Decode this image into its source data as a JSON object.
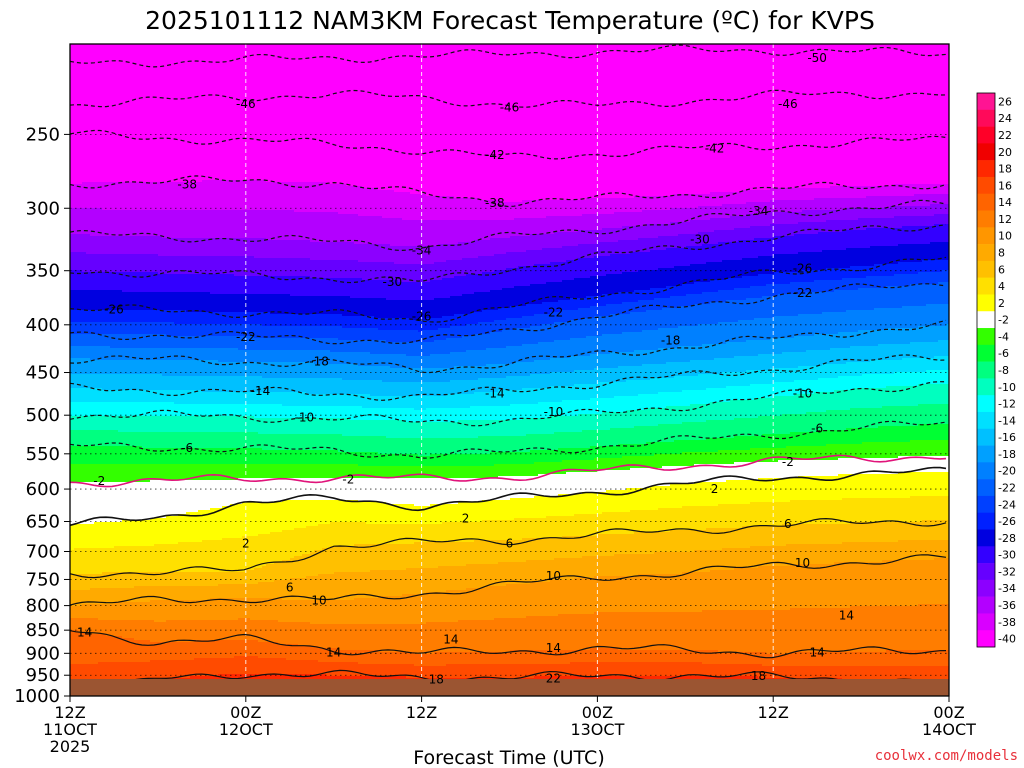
{
  "chart_data": {
    "type": "heatmap",
    "title": "2025101112 NAM3KM Forecast Temperature (ºC) for KVPS",
    "xlabel": "Forecast Time (UTC)",
    "ylabel": "",
    "y_scale": "log",
    "y_inverted": true,
    "ylim": [
      1000,
      200
    ],
    "xlim": [
      0,
      60
    ],
    "grid": true,
    "colorbar_placement": "right",
    "credit": "coolwx.com/models",
    "credit_color": "#e8303a",
    "surface_color": "#9b5532",
    "y_ticks": [
      250,
      300,
      350,
      400,
      450,
      500,
      550,
      600,
      650,
      700,
      750,
      800,
      850,
      900,
      950,
      1000
    ],
    "x_ticks": [
      {
        "hour": 0,
        "line1": "12Z",
        "line2": "11OCT",
        "line3": "2025"
      },
      {
        "hour": 12,
        "line1": "00Z",
        "line2": "12OCT",
        "line3": ""
      },
      {
        "hour": 24,
        "line1": "12Z",
        "line2": "",
        "line3": ""
      },
      {
        "hour": 36,
        "line1": "00Z",
        "line2": "13OCT",
        "line3": ""
      },
      {
        "hour": 48,
        "line1": "12Z",
        "line2": "",
        "line3": ""
      },
      {
        "hour": 60,
        "line1": "00Z",
        "line2": "14OCT",
        "line3": ""
      }
    ],
    "colorbar": {
      "labels": [
        26,
        24,
        22,
        20,
        18,
        16,
        14,
        12,
        10,
        8,
        6,
        4,
        2,
        -2,
        -4,
        -6,
        -8,
        -10,
        -12,
        -14,
        -16,
        -18,
        -20,
        -22,
        -24,
        -26,
        -28,
        -30,
        -32,
        -34,
        -36,
        -38,
        -40
      ],
      "colors": [
        "#ff1493",
        "#ff0a5a",
        "#ff0028",
        "#f00000",
        "#ff2800",
        "#ff4b00",
        "#ff6400",
        "#ff7d00",
        "#ff9600",
        "#ffaa00",
        "#ffc000",
        "#ffe000",
        "#ffff00",
        "#ffffff",
        "#33ff00",
        "#00ff33",
        "#00ff80",
        "#00ffbf",
        "#00ffff",
        "#00e0ff",
        "#00c0ff",
        "#00a0ff",
        "#0080ff",
        "#0060ff",
        "#0040ff",
        "#0020ff",
        "#0000e0",
        "#3300ff",
        "#6600ff",
        "#8c00ff",
        "#b300ff",
        "#d900ff",
        "#ff00ff"
      ]
    },
    "x": [
      0,
      6,
      12,
      18,
      24,
      30,
      36,
      42,
      48,
      54,
      60
    ],
    "isotherms": [
      {
        "value": -50,
        "pressures": [
          210,
          209,
          208,
          207,
          206,
          205,
          204,
          203,
          203,
          204,
          205
        ]
      },
      {
        "value": -46,
        "pressures": [
          232,
          230,
          228,
          226,
          229,
          232,
          233,
          230,
          227,
          226,
          226
        ]
      },
      {
        "value": -42,
        "pressures": [
          250,
          252,
          254,
          256,
          260,
          265,
          262,
          259,
          257,
          255,
          253
        ]
      },
      {
        "value": -38,
        "pressures": [
          282,
          281,
          280,
          282,
          290,
          295,
          293,
          290,
          286,
          284,
          282
        ]
      },
      {
        "value": -34,
        "pressures": [
          320,
          322,
          323,
          326,
          330,
          322,
          316,
          310,
          303,
          300,
          297
        ]
      },
      {
        "value": -30,
        "pressures": [
          350,
          352,
          354,
          356,
          360,
          348,
          338,
          330,
          322,
          316,
          312
        ]
      },
      {
        "value": -26,
        "pressures": [
          385,
          386,
          388,
          390,
          395,
          383,
          372,
          362,
          352,
          346,
          340
        ]
      },
      {
        "value": -22,
        "pressures": [
          410,
          410,
          412,
          414,
          418,
          405,
          392,
          382,
          372,
          366,
          360
        ]
      },
      {
        "value": -18,
        "pressures": [
          435,
          436,
          438,
          440,
          446,
          440,
          430,
          422,
          414,
          406,
          400
        ]
      },
      {
        "value": -14,
        "pressures": [
          468,
          470,
          472,
          474,
          478,
          470,
          462,
          454,
          446,
          438,
          432
        ]
      },
      {
        "value": -10,
        "pressures": [
          500,
          500,
          502,
          504,
          508,
          506,
          498,
          488,
          478,
          468,
          462
        ]
      },
      {
        "value": -6,
        "pressures": [
          540,
          541,
          543,
          546,
          552,
          548,
          540,
          532,
          524,
          516,
          510
        ]
      },
      {
        "value": -2,
        "pressures": [
          590,
          588,
          585,
          583,
          585,
          582,
          574,
          566,
          560,
          556,
          552
        ]
      },
      {
        "value": 2,
        "pressures": [
          655,
          645,
          620,
          615,
          625,
          615,
          604,
          592,
          584,
          578,
          575
        ]
      },
      {
        "value": 6,
        "pressures": [
          740,
          735,
          735,
          690,
          685,
          680,
          672,
          664,
          656,
          652,
          648
        ]
      },
      {
        "value": 10,
        "pressures": [
          800,
          790,
          785,
          790,
          776,
          760,
          745,
          738,
          725,
          718,
          712
        ]
      },
      {
        "value": 14,
        "pressures": [
          850,
          875,
          870,
          890,
          900,
          895,
          890,
          892,
          900,
          896,
          892
        ]
      },
      {
        "value": 18,
        "pressures": [
          1005,
          960,
          945,
          950,
          955,
          955,
          952,
          950,
          955,
          960,
          965
        ]
      },
      {
        "value": 22,
        "pressures": [
          1010,
          1000,
          990,
          985,
          980,
          975,
          978,
          982,
          986,
          990,
          995
        ]
      }
    ],
    "contour_labels": [
      {
        "value": -50,
        "x": 51,
        "p": 207
      },
      {
        "value": -46,
        "x": 12,
        "p": 232
      },
      {
        "value": -46,
        "x": 30,
        "p": 234
      },
      {
        "value": -46,
        "x": 49,
        "p": 232
      },
      {
        "value": -42,
        "x": 29,
        "p": 263
      },
      {
        "value": -42,
        "x": 44,
        "p": 259
      },
      {
        "value": -38,
        "x": 8,
        "p": 283
      },
      {
        "value": -38,
        "x": 29,
        "p": 296
      },
      {
        "value": -34,
        "x": 24,
        "p": 333
      },
      {
        "value": -34,
        "x": 47,
        "p": 302
      },
      {
        "value": -30,
        "x": 22,
        "p": 360
      },
      {
        "value": -30,
        "x": 43,
        "p": 324
      },
      {
        "value": -26,
        "x": 3,
        "p": 385
      },
      {
        "value": -26,
        "x": 24,
        "p": 392
      },
      {
        "value": -26,
        "x": 50,
        "p": 348
      },
      {
        "value": -22,
        "x": 12,
        "p": 412
      },
      {
        "value": -22,
        "x": 33,
        "p": 388
      },
      {
        "value": -22,
        "x": 50,
        "p": 370
      },
      {
        "value": -18,
        "x": 17,
        "p": 438
      },
      {
        "value": -18,
        "x": 41,
        "p": 416
      },
      {
        "value": -14,
        "x": 13,
        "p": 471
      },
      {
        "value": -14,
        "x": 29,
        "p": 474
      },
      {
        "value": -10,
        "x": 16,
        "p": 503
      },
      {
        "value": -10,
        "x": 33,
        "p": 496
      },
      {
        "value": -10,
        "x": 50,
        "p": 474
      },
      {
        "value": -6,
        "x": 8,
        "p": 542
      },
      {
        "value": -6,
        "x": 51,
        "p": 517
      },
      {
        "value": -2,
        "x": 2,
        "p": 588
      },
      {
        "value": -2,
        "x": 19,
        "p": 586
      },
      {
        "value": -2,
        "x": 49,
        "p": 561
      },
      {
        "value": 2,
        "x": 12,
        "p": 686
      },
      {
        "value": 2,
        "x": 27,
        "p": 645
      },
      {
        "value": 2,
        "x": 44,
        "p": 600
      },
      {
        "value": 6,
        "x": 15,
        "p": 765
      },
      {
        "value": 6,
        "x": 30,
        "p": 686
      },
      {
        "value": 6,
        "x": 49,
        "p": 654
      },
      {
        "value": 10,
        "x": 17,
        "p": 790
      },
      {
        "value": 10,
        "x": 33,
        "p": 744
      },
      {
        "value": 10,
        "x": 50,
        "p": 720
      },
      {
        "value": 14,
        "x": 1,
        "p": 855
      },
      {
        "value": 14,
        "x": 18,
        "p": 898
      },
      {
        "value": 14,
        "x": 26,
        "p": 870
      },
      {
        "value": 14,
        "x": 33,
        "p": 888
      },
      {
        "value": 14,
        "x": 51,
        "p": 898
      },
      {
        "value": 14,
        "x": 53,
        "p": 820
      },
      {
        "value": 18,
        "x": 25,
        "p": 960
      },
      {
        "value": 18,
        "x": 47,
        "p": 952
      },
      {
        "value": 22,
        "x": 33,
        "p": 958
      }
    ]
  }
}
